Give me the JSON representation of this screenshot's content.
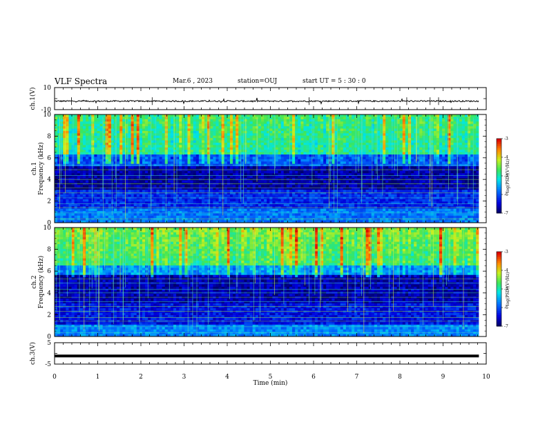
{
  "header": {
    "title": "VLF Spectra",
    "date": "Mar.6  , 2023",
    "station": "station=OUJ",
    "start": "start  UT =   5  : 30 : 0"
  },
  "chart_data": [
    {
      "type": "line",
      "name": "ch1-waveform",
      "ylabel": "ch.1(V)",
      "ylim": [
        -10,
        10
      ],
      "yticks": [
        "10",
        "-10"
      ],
      "x_range_min": [
        0,
        9.83
      ],
      "baseline_value": -2.3
    },
    {
      "type": "heatmap",
      "name": "ch1-spectrogram",
      "ylabel_top": "ch.1",
      "ylabel": "Frequency  (kHz)",
      "ylim": [
        0,
        10
      ],
      "yticks": [
        "0",
        "2",
        "4",
        "6",
        "8",
        "10"
      ],
      "colorbar": {
        "label": "log(PSD)(V²/Hz)",
        "range": [
          -7,
          -3
        ],
        "ticks": [
          "-3",
          "-4",
          "-5",
          "-6",
          "-7"
        ]
      }
    },
    {
      "type": "heatmap",
      "name": "ch2-spectrogram",
      "ylabel_top": "ch.2",
      "ylabel": "Frequency  (kHz)",
      "ylim": [
        0,
        10
      ],
      "yticks": [
        "0",
        "2",
        "4",
        "6",
        "8",
        "10"
      ],
      "colorbar": {
        "label": "log(PSD)(V²/Hz)",
        "range": [
          -7,
          -3
        ],
        "ticks": [
          "-3",
          "-4",
          "-5",
          "-6",
          "-7"
        ]
      }
    },
    {
      "type": "line",
      "name": "ch3-waveform",
      "ylabel": "ch.3(V)",
      "ylim": [
        -5,
        5
      ],
      "yticks": [
        "5",
        "-5"
      ],
      "x_range_min": [
        0,
        9.83
      ],
      "baseline_value": -1.2
    }
  ],
  "xaxis": {
    "label": "Time  (min)",
    "ticks": [
      "0",
      "1",
      "2",
      "3",
      "4",
      "5",
      "6",
      "7",
      "8",
      "9",
      "10"
    ],
    "range": [
      0,
      10
    ]
  }
}
